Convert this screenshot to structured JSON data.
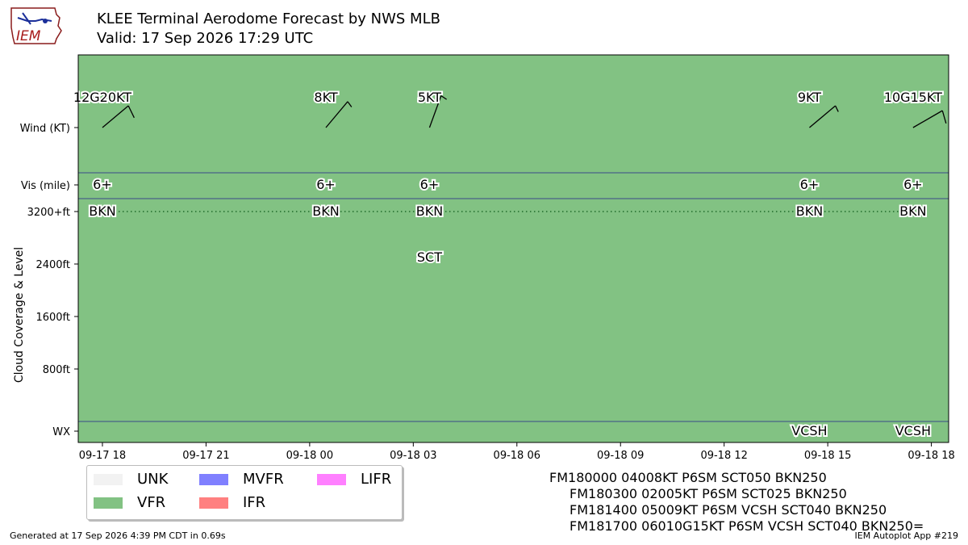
{
  "header": {
    "title_line1": "KLEE Terminal Aerodome Forecast by NWS MLB",
    "title_line2": "Valid: 17 Sep 2026 17:29 UTC",
    "logo_text": "IEM"
  },
  "footer": {
    "generated": "Generated at 17 Sep 2026 4:39 PM CDT in 0.69s",
    "app": "IEM Autoplot App #219"
  },
  "taf_lines": [
    "FM180000 04008KT P6SM SCT050 BKN250",
    "FM180300 02005KT P6SM SCT025 BKN250",
    "FM181400 05009KT P6SM VCSH SCT040 BKN250",
    "FM181700 06010G15KT P6SM VCSH SCT040 BKN250="
  ],
  "legend": {
    "items": [
      {
        "label": "UNK",
        "color": "#f2f2f2"
      },
      {
        "label": "VFR",
        "color": "#82c283"
      },
      {
        "label": "MVFR",
        "color": "#8080ff"
      },
      {
        "label": "IFR",
        "color": "#ff8080"
      },
      {
        "label": "LIFR",
        "color": "#ff80ff"
      }
    ]
  },
  "chart_data": {
    "type": "timeline",
    "background_category": "VFR",
    "background_color": "#82c283",
    "x_ticks": [
      "09-17 18",
      "09-17 21",
      "09-18 00",
      "09-18 03",
      "09-18 06",
      "09-18 09",
      "09-18 12",
      "09-18 15",
      "09-18 18"
    ],
    "x_range_hours": [
      -0.7,
      24.5
    ],
    "y_rows": {
      "wind": "Wind (KT)",
      "vis": "Vis (mile)",
      "wx": "WX"
    },
    "y_cloud_label": "Cloud Coverage & Level",
    "y_cloud_ticks": [
      {
        "label": "3200+ft",
        "value": 3200
      },
      {
        "label": "2400ft",
        "value": 2400
      },
      {
        "label": "1600ft",
        "value": 1600
      },
      {
        "label": "800ft",
        "value": 800
      }
    ],
    "forecasts": [
      {
        "hour": 0.0,
        "wind_label": "12G20KT",
        "wind_dir": 50,
        "wind_speed": 12,
        "vis": "6+",
        "clouds": [
          {
            "cover": "BKN",
            "level": 3200
          }
        ],
        "wx": ""
      },
      {
        "hour": 6.47,
        "wind_label": "8KT",
        "wind_dir": 40,
        "wind_speed": 8,
        "vis": "6+",
        "clouds": [
          {
            "cover": "BKN",
            "level": 3200
          }
        ],
        "wx": ""
      },
      {
        "hour": 9.47,
        "wind_label": "5KT",
        "wind_dir": 20,
        "wind_speed": 5,
        "vis": "6+",
        "clouds": [
          {
            "cover": "BKN",
            "level": 3200
          },
          {
            "cover": "SCT",
            "level": 2500
          }
        ],
        "wx": ""
      },
      {
        "hour": 20.47,
        "wind_label": "9KT",
        "wind_dir": 50,
        "wind_speed": 9,
        "vis": "6+",
        "clouds": [
          {
            "cover": "BKN",
            "level": 3200
          }
        ],
        "wx": "VCSH"
      },
      {
        "hour": 23.47,
        "wind_label": "10G15KT",
        "wind_dir": 60,
        "wind_speed": 10,
        "vis": "6+",
        "clouds": [
          {
            "cover": "BKN",
            "level": 3200
          }
        ],
        "wx": "VCSH"
      }
    ]
  }
}
